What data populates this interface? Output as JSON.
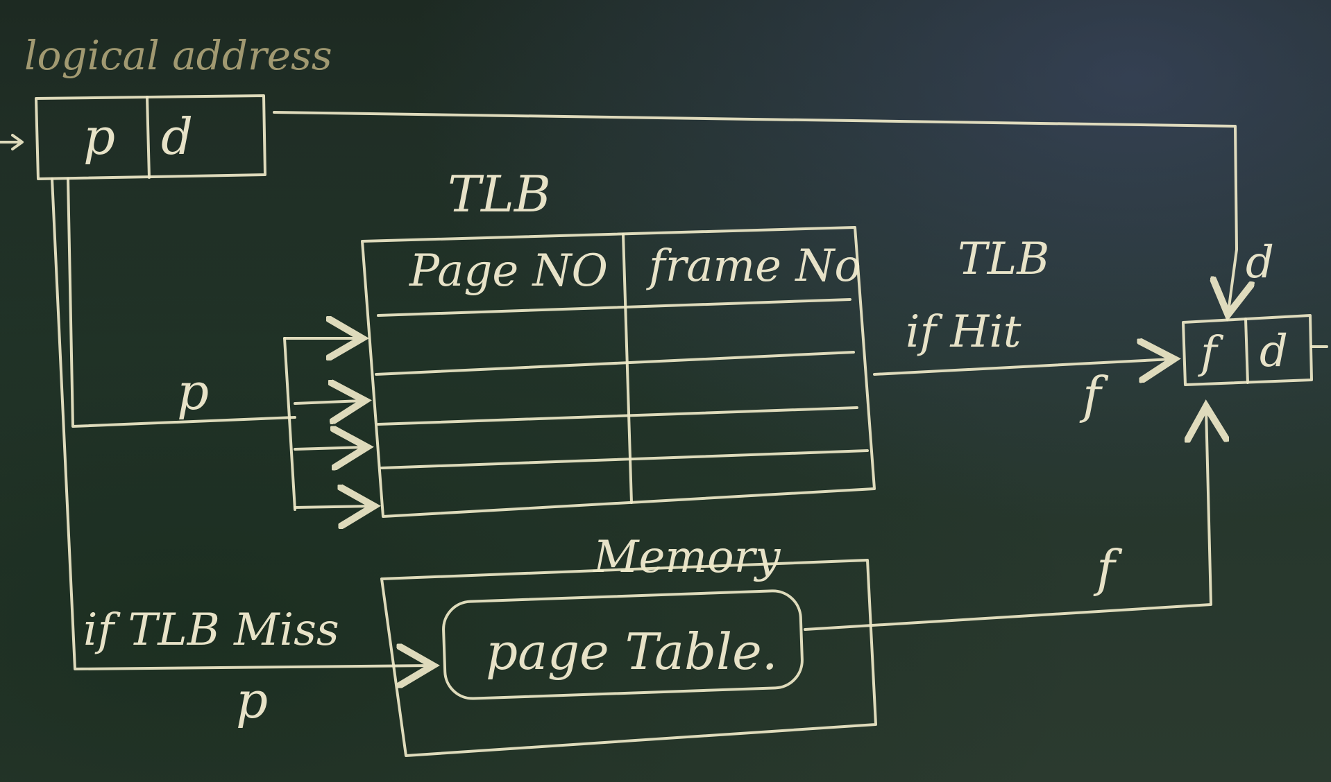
{
  "title": "logical address",
  "logical_address": {
    "p": "p",
    "d": "d"
  },
  "tlb": {
    "title": "TLB",
    "headers": [
      "Page NO",
      "frame No"
    ],
    "rows": 4
  },
  "tlb_hit_label_line1": "TLB",
  "tlb_hit_label_line2": "if Hit",
  "tlb_hit_f": "f",
  "physical_address": {
    "f": "f",
    "d": "d"
  },
  "d_arrow_label": "d",
  "p_to_tlb": "p",
  "tlb_miss_label": "if TLB Miss",
  "tlb_miss_p": "p",
  "memory": {
    "title": "Memory",
    "page_table": "page Table."
  },
  "page_table_f": "f",
  "colors": {
    "chalk": "#efe9c8",
    "board": "#24352b"
  }
}
